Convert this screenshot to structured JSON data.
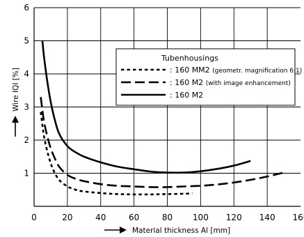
{
  "chart_data": {
    "type": "line",
    "xlabel": "Material thickness Al [mm]",
    "ylabel": "Wire IQI [%]",
    "xlim": [
      0,
      160
    ],
    "ylim": [
      0,
      6
    ],
    "x_ticks": [
      "0",
      "20",
      "40",
      "60",
      "80",
      "100",
      "120",
      "140",
      "160"
    ],
    "y_ticks": [
      "1",
      "2",
      "3",
      "4",
      "5",
      "6"
    ],
    "grid": true,
    "legend": {
      "title": "Tubenhousings",
      "placement": "top-right",
      "entries": [
        {
          "marker": ":",
          "label": "160 MM2",
          "note": "(geometr. magnification 6:1)"
        },
        {
          "marker": ":",
          "label": "160 M2",
          "note": "(with image enhancement)"
        },
        {
          "marker": ":",
          "label": "160 M2",
          "note": ""
        }
      ]
    },
    "series": [
      {
        "line_style": "dotted",
        "x": [
          4,
          5,
          6,
          8,
          10,
          12,
          15,
          20,
          25,
          30,
          40,
          50,
          60,
          70,
          80,
          90,
          95
        ],
        "y": [
          2.85,
          2.45,
          2.1,
          1.65,
          1.3,
          1.05,
          0.8,
          0.6,
          0.5,
          0.45,
          0.4,
          0.37,
          0.36,
          0.36,
          0.37,
          0.38,
          0.39
        ]
      },
      {
        "line_style": "dashed",
        "x": [
          4,
          5,
          6,
          8,
          10,
          12,
          15,
          20,
          25,
          30,
          40,
          50,
          60,
          70,
          80,
          90,
          100,
          110,
          120,
          130,
          140,
          150
        ],
        "y": [
          3.3,
          2.9,
          2.55,
          2.1,
          1.75,
          1.5,
          1.2,
          0.95,
          0.83,
          0.76,
          0.67,
          0.62,
          0.6,
          0.58,
          0.58,
          0.6,
          0.62,
          0.66,
          0.72,
          0.8,
          0.9,
          1.02
        ]
      },
      {
        "line_style": "solid",
        "x": [
          5,
          6,
          8,
          10,
          12,
          15,
          20,
          25,
          30,
          40,
          50,
          60,
          70,
          80,
          90,
          100,
          110,
          120,
          130
        ],
        "y": [
          5.0,
          4.5,
          3.75,
          3.15,
          2.7,
          2.2,
          1.82,
          1.63,
          1.5,
          1.33,
          1.2,
          1.12,
          1.05,
          1.02,
          1.02,
          1.06,
          1.13,
          1.23,
          1.37
        ]
      }
    ]
  }
}
